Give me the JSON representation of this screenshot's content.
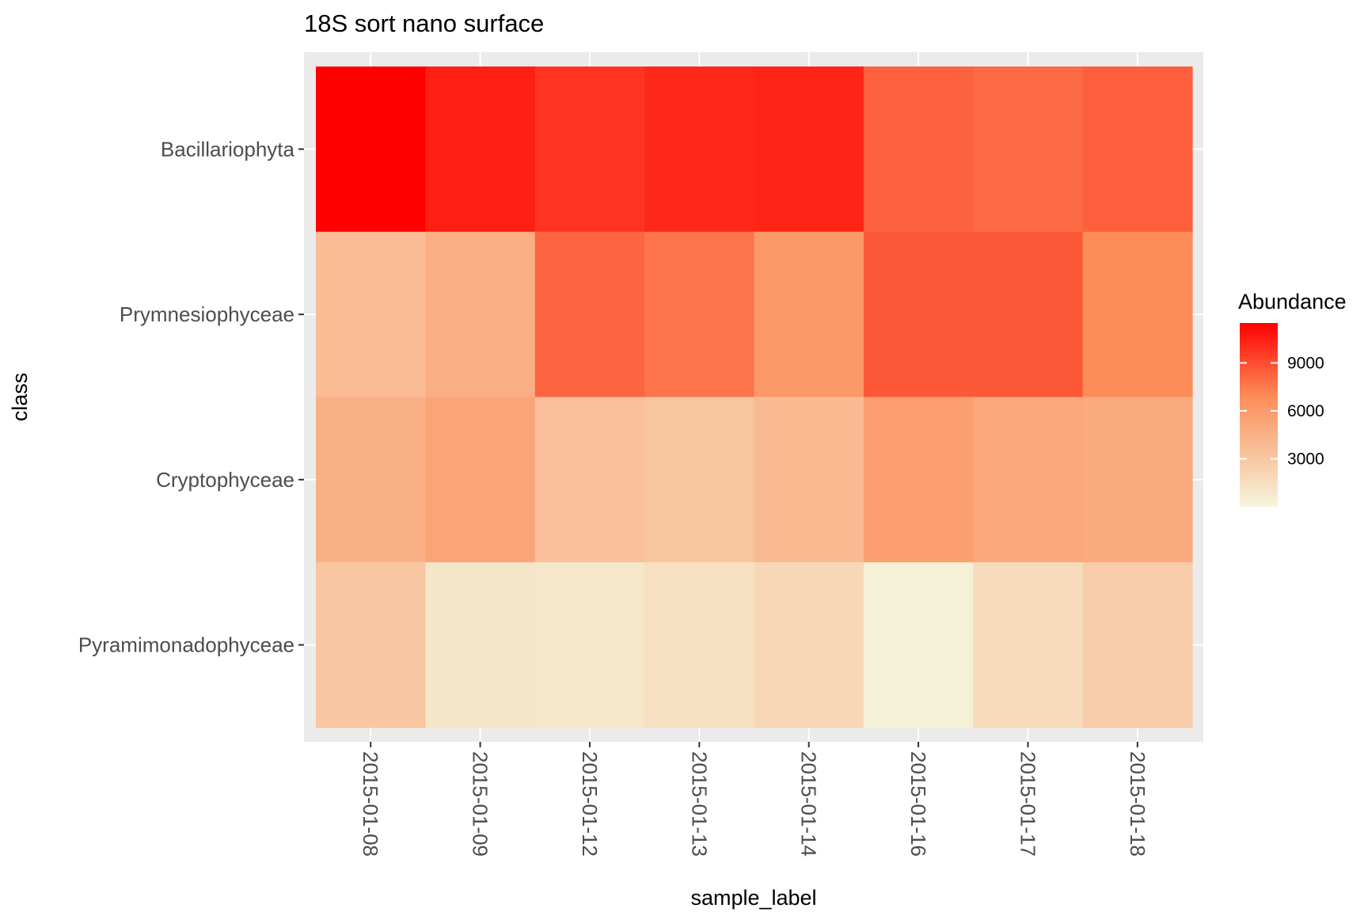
{
  "chart_data": {
    "type": "heatmap",
    "title": "18S sort nano surface",
    "xlabel": "sample_label",
    "ylabel": "class",
    "x": [
      "2015-01-08",
      "2015-01-09",
      "2015-01-12",
      "2015-01-13",
      "2015-01-14",
      "2015-01-16",
      "2015-01-17",
      "2015-01-18"
    ],
    "y": [
      "Bacillariophyta",
      "Prymnesiophyceae",
      "Cryptophyceae",
      "Pyramimonadophyceae"
    ],
    "values": [
      [
        11500,
        10500,
        9800,
        10200,
        10300,
        8300,
        8000,
        8400
      ],
      [
        3800,
        4700,
        8200,
        7700,
        6100,
        8600,
        8600,
        6900
      ],
      [
        4600,
        5300,
        3500,
        3200,
        3900,
        5700,
        5100,
        5000
      ],
      [
        3100,
        1000,
        900,
        1400,
        2000,
        250,
        1700,
        2700
      ]
    ],
    "colorbar": {
      "title": "Abundance",
      "ticks": [
        3000,
        6000,
        9000
      ],
      "min": 0,
      "max": 11500,
      "low_color": "#F5F5DC",
      "high_color": "#FF0000"
    },
    "grid": true,
    "legend_position": "right"
  }
}
